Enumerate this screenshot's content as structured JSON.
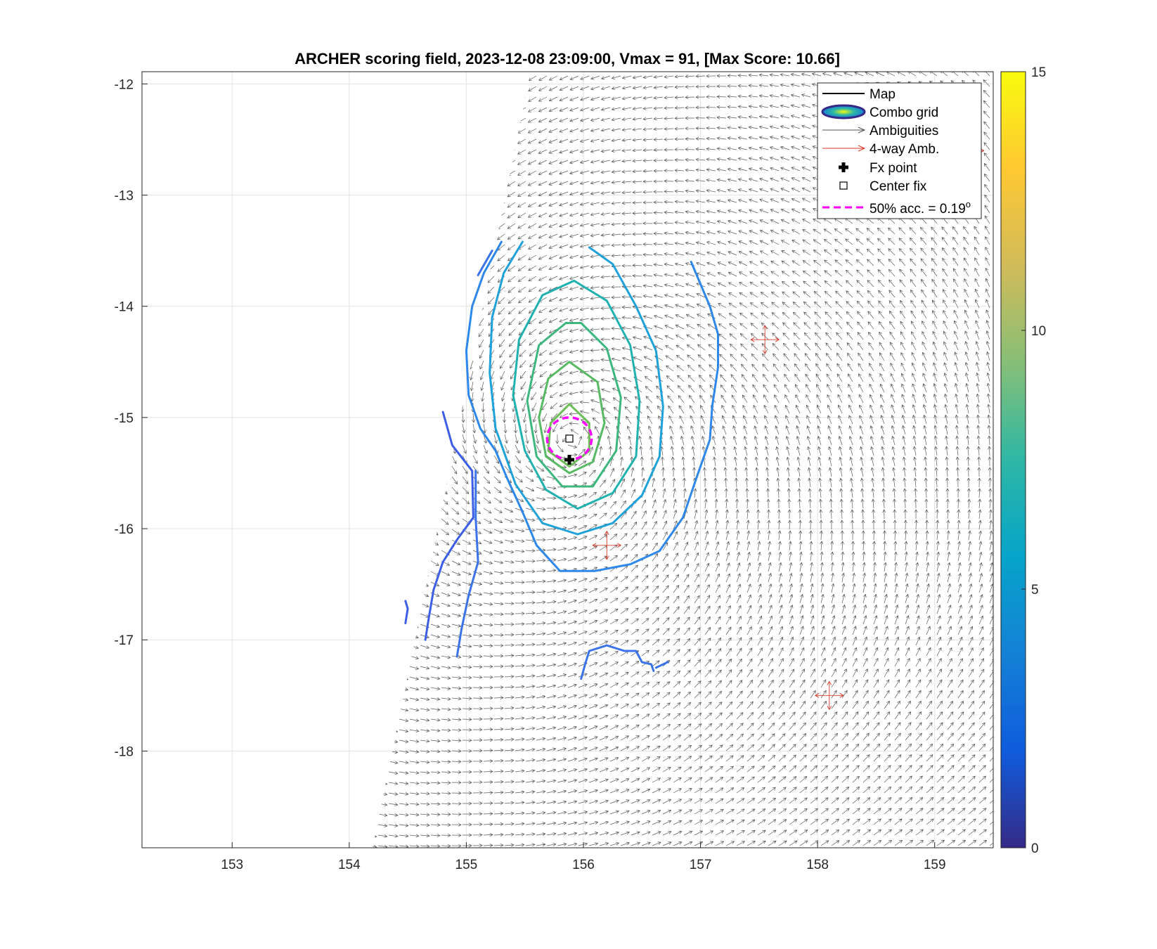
{
  "chart_data": {
    "type": "scatter",
    "title": "ARCHER scoring field, 2023-12-08 23:09:00, Vmax = 91, [Max Score: 10.66]",
    "xlabel": "",
    "ylabel": "",
    "xlim": [
      152.23,
      159.5
    ],
    "ylim": [
      -18.87,
      -11.89
    ],
    "xticks": [
      153,
      154,
      155,
      156,
      157,
      158,
      159
    ],
    "yticks": [
      -12,
      -13,
      -14,
      -15,
      -16,
      -17,
      -18
    ],
    "grid": true,
    "colorbar": {
      "min": 0,
      "max": 15,
      "ticks": [
        0,
        5,
        10,
        15
      ],
      "colormap": "parula"
    },
    "fx_point": {
      "lon": 155.88,
      "lat": -15.38
    },
    "center_fix": {
      "lon": 155.88,
      "lat": -15.19
    },
    "accuracy_circle": {
      "lon": 155.88,
      "lat": -15.19,
      "radius_deg": 0.19
    },
    "vortex_center": {
      "lon": 155.9,
      "lat": -15.2
    },
    "contours": [
      {
        "level": 3.5,
        "color": "#3c5ee6",
        "lines": [
          [
            [
              154.48,
              -16.65
            ],
            [
              154.5,
              -16.72
            ],
            [
              154.48,
              -16.85
            ]
          ],
          [
            [
              154.8,
              -14.95
            ],
            [
              154.88,
              -15.25
            ],
            [
              155.05,
              -15.48
            ],
            [
              155.06,
              -15.9
            ],
            [
              154.92,
              -16.1
            ],
            [
              154.8,
              -16.3
            ],
            [
              154.72,
              -16.55
            ],
            [
              154.68,
              -16.8
            ],
            [
              154.65,
              -17.0
            ]
          ]
        ]
      },
      {
        "level": 4.2,
        "color": "#3b73e8",
        "lines": [
          [
            [
              155.1,
              -13.72
            ],
            [
              155.22,
              -13.5
            ]
          ],
          [
            [
              155.08,
              -15.48
            ],
            [
              155.08,
              -15.9
            ],
            [
              155.1,
              -16.3
            ],
            [
              155.02,
              -16.6
            ],
            [
              154.96,
              -16.9
            ],
            [
              154.92,
              -17.15
            ]
          ],
          [
            [
              155.98,
              -17.35
            ],
            [
              156.02,
              -17.2
            ],
            [
              156.05,
              -17.1
            ],
            [
              156.2,
              -17.05
            ],
            [
              156.35,
              -17.1
            ],
            [
              156.45,
              -17.1
            ],
            [
              156.5,
              -17.2
            ],
            [
              156.58,
              -17.22
            ],
            [
              156.6,
              -17.28
            ]
          ],
          [
            [
              156.62,
              -17.25
            ],
            [
              156.72,
              -17.2
            ]
          ]
        ]
      },
      {
        "level": 5.0,
        "color": "#2d88ea",
        "lines": [
          [
            [
              155.3,
              -13.42
            ],
            [
              155.15,
              -13.7
            ],
            [
              155.05,
              -14.0
            ],
            [
              155.0,
              -14.4
            ],
            [
              155.02,
              -14.8
            ],
            [
              155.12,
              -15.1
            ],
            [
              155.25,
              -15.3
            ],
            [
              155.35,
              -15.55
            ],
            [
              155.48,
              -15.85
            ],
            [
              155.6,
              -16.15
            ],
            [
              155.8,
              -16.38
            ],
            [
              156.1,
              -16.38
            ],
            [
              156.4,
              -16.32
            ],
            [
              156.65,
              -16.2
            ],
            [
              156.85,
              -15.9
            ],
            [
              156.98,
              -15.5
            ],
            [
              157.08,
              -15.2
            ],
            [
              157.1,
              -14.9
            ],
            [
              157.15,
              -14.55
            ],
            [
              157.15,
              -14.25
            ],
            [
              157.08,
              -14.0
            ],
            [
              156.98,
              -13.75
            ],
            [
              156.92,
              -13.6
            ]
          ]
        ]
      },
      {
        "level": 6.0,
        "color": "#1fa1d9",
        "lines": [
          [
            [
              155.48,
              -13.42
            ],
            [
              155.32,
              -13.7
            ],
            [
              155.22,
              -14.1
            ],
            [
              155.2,
              -14.6
            ],
            [
              155.25,
              -15.1
            ],
            [
              155.42,
              -15.6
            ],
            [
              155.65,
              -15.95
            ],
            [
              155.95,
              -16.05
            ],
            [
              156.25,
              -15.95
            ],
            [
              156.5,
              -15.7
            ],
            [
              156.65,
              -15.35
            ],
            [
              156.68,
              -14.9
            ],
            [
              156.62,
              -14.4
            ],
            [
              156.45,
              -14.0
            ],
            [
              156.25,
              -13.62
            ],
            [
              156.05,
              -13.47
            ]
          ]
        ]
      },
      {
        "level": 7.0,
        "color": "#20b2b0",
        "lines": [
          [
            [
              155.92,
              -13.77
            ],
            [
              155.65,
              -13.9
            ],
            [
              155.45,
              -14.3
            ],
            [
              155.4,
              -14.8
            ],
            [
              155.5,
              -15.3
            ],
            [
              155.68,
              -15.65
            ],
            [
              155.95,
              -15.82
            ],
            [
              156.25,
              -15.68
            ],
            [
              156.45,
              -15.35
            ],
            [
              156.48,
              -14.85
            ],
            [
              156.4,
              -14.35
            ],
            [
              156.2,
              -13.95
            ],
            [
              155.92,
              -13.77
            ]
          ]
        ]
      },
      {
        "level": 8.0,
        "color": "#3cb77e",
        "lines": [
          [
            [
              155.85,
              -14.15
            ],
            [
              155.62,
              -14.35
            ],
            [
              155.52,
              -14.85
            ],
            [
              155.6,
              -15.35
            ],
            [
              155.82,
              -15.62
            ],
            [
              156.08,
              -15.62
            ],
            [
              156.28,
              -15.3
            ],
            [
              156.32,
              -14.82
            ],
            [
              156.2,
              -14.38
            ],
            [
              155.98,
              -14.15
            ],
            [
              155.85,
              -14.15
            ]
          ]
        ]
      },
      {
        "level": 9.0,
        "color": "#57bb63",
        "lines": [
          [
            [
              155.88,
              -14.5
            ],
            [
              155.7,
              -14.65
            ],
            [
              155.62,
              -15.0
            ],
            [
              155.68,
              -15.35
            ],
            [
              155.88,
              -15.5
            ],
            [
              156.08,
              -15.4
            ],
            [
              156.18,
              -15.05
            ],
            [
              156.12,
              -14.68
            ],
            [
              155.88,
              -14.5
            ]
          ]
        ]
      },
      {
        "level": 10.0,
        "color": "#6ebe58",
        "lines": [
          [
            [
              155.88,
              -14.88
            ],
            [
              155.72,
              -15.05
            ],
            [
              155.7,
              -15.3
            ],
            [
              155.88,
              -15.44
            ],
            [
              156.05,
              -15.3
            ],
            [
              156.05,
              -15.05
            ],
            [
              155.88,
              -14.88
            ]
          ]
        ]
      }
    ],
    "ambiguity_regions": [
      {
        "lon": 157.55,
        "lat": -14.3
      },
      {
        "lon": 156.2,
        "lat": -16.15
      },
      {
        "lon": 158.1,
        "lat": -17.5
      },
      {
        "lon": 159.3,
        "lat": -12.6
      }
    ],
    "legend": {
      "placement": "top-right",
      "entries": [
        {
          "label": "Map",
          "kind": "line"
        },
        {
          "label": "Combo grid",
          "kind": "contour"
        },
        {
          "label": "Ambiguities",
          "kind": "arrow-gray"
        },
        {
          "label": "4-way Amb.",
          "kind": "arrow-red"
        },
        {
          "label": "Fx point",
          "kind": "plus"
        },
        {
          "label": "Center fix",
          "kind": "square"
        },
        {
          "label": "50% acc. = 0.19",
          "sup": "o",
          "kind": "dashed"
        }
      ]
    }
  }
}
